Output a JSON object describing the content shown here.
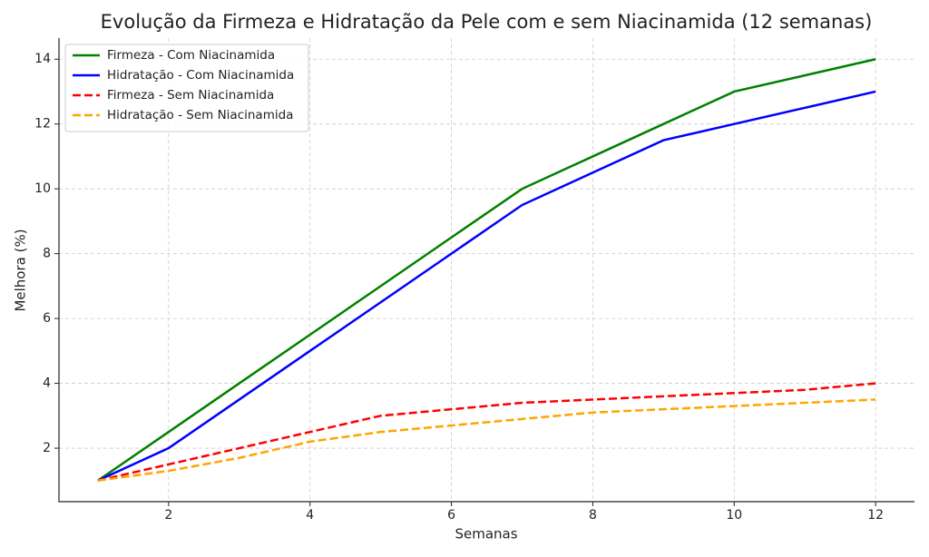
{
  "chart_data": {
    "type": "line",
    "title": "Evolução da Firmeza e Hidratação da Pele com e sem Niacinamida (12 semanas)",
    "xlabel": "Semanas",
    "ylabel": "Melhora (%)",
    "x": [
      1,
      2,
      3,
      4,
      5,
      6,
      7,
      8,
      9,
      10,
      11,
      12
    ],
    "series": [
      {
        "name": "Firmeza - Com Niacinamida",
        "color": "#008000",
        "dash": false,
        "values": [
          1,
          2.5,
          4,
          5.5,
          7,
          8.5,
          10,
          11,
          12,
          13,
          13.5,
          14
        ]
      },
      {
        "name": "Hidratação - Com Niacinamida",
        "color": "#0000ff",
        "dash": false,
        "values": [
          1,
          2,
          3.5,
          5,
          6.5,
          8,
          9.5,
          10.5,
          11.5,
          12,
          12.5,
          13
        ]
      },
      {
        "name": "Firmeza - Sem Niacinamida",
        "color": "#ff0000",
        "dash": true,
        "values": [
          1,
          1.5,
          2,
          2.5,
          3,
          3.2,
          3.4,
          3.5,
          3.6,
          3.7,
          3.8,
          4
        ]
      },
      {
        "name": "Hidratação - Sem Niacinamida",
        "color": "#ffa500",
        "dash": true,
        "values": [
          1,
          1.3,
          1.7,
          2.2,
          2.5,
          2.7,
          2.9,
          3.1,
          3.2,
          3.3,
          3.4,
          3.5
        ]
      }
    ],
    "xlim": [
      0.45,
      12.55
    ],
    "xticks": [
      2,
      4,
      6,
      8,
      10,
      12
    ],
    "ylim": [
      0.35,
      14.65
    ],
    "yticks": [
      2,
      4,
      6,
      8,
      10,
      12,
      14
    ],
    "grid": true,
    "legend": "upper left"
  }
}
